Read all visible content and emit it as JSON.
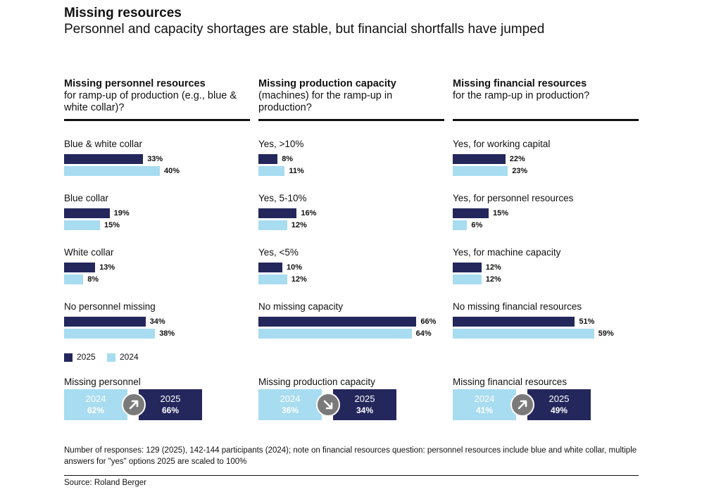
{
  "title": "Missing resources",
  "subtitle": "Personnel and capacity shortages are stable, but financial shortfalls have jumped",
  "colors": {
    "y2025": "#23275c",
    "y2024": "#a8dcf0",
    "arrow": "#7a7a7a"
  },
  "legend": {
    "y2025": "2025",
    "y2024": "2024"
  },
  "chart_data": [
    {
      "type": "bar",
      "title_bold": "Missing personnel resources",
      "title_rest": "for ramp-up of production (e.g., blue & white collar)?",
      "categories": [
        "Blue & white collar",
        "Blue collar",
        "White collar",
        "No personnel missing"
      ],
      "series": [
        {
          "name": "2025",
          "values": [
            33,
            19,
            13,
            34
          ]
        },
        {
          "name": "2024",
          "values": [
            40,
            15,
            8,
            38
          ]
        }
      ],
      "value_labels": {
        "2025": [
          "33%",
          "19%",
          "13%",
          "34%"
        ],
        "2024": [
          "40%",
          "15%",
          "8%",
          "38%"
        ]
      },
      "summary": {
        "label": "Missing personnel",
        "y2024": "2024",
        "v2024": "62%",
        "y2025": "2025",
        "v2025": "66%",
        "trend": "up"
      }
    },
    {
      "type": "bar",
      "title_bold": "Missing production capacity",
      "title_rest": "(machines) for the ramp-up in production?",
      "categories": [
        "Yes, >10%",
        "Yes, 5-10%",
        "Yes, <5%",
        "No missing capacity"
      ],
      "series": [
        {
          "name": "2025",
          "values": [
            8,
            16,
            10,
            66
          ]
        },
        {
          "name": "2024",
          "values": [
            11,
            12,
            12,
            64
          ]
        }
      ],
      "value_labels": {
        "2025": [
          "8%",
          "16%",
          "10%",
          "66%"
        ],
        "2024": [
          "11%",
          "12%",
          "12%",
          "64%"
        ]
      },
      "summary": {
        "label": "Missing production capacity",
        "y2024": "2024",
        "v2024": "36%",
        "y2025": "2025",
        "v2025": "34%",
        "trend": "down"
      }
    },
    {
      "type": "bar",
      "title_bold": "Missing financial resources",
      "title_rest": "for the ramp-up in production?",
      "categories": [
        "Yes, for working capital",
        "Yes, for personnel resources",
        "Yes, for machine capacity",
        "No missing financial resources"
      ],
      "series": [
        {
          "name": "2025",
          "values": [
            22,
            15,
            12,
            51
          ]
        },
        {
          "name": "2024",
          "values": [
            23,
            6,
            12,
            59
          ]
        }
      ],
      "value_labels": {
        "2025": [
          "22%",
          "15%",
          "12%",
          "51%"
        ],
        "2024": [
          "23%",
          "6%",
          "12%",
          "59%"
        ]
      },
      "summary": {
        "label": "Missing financial resources",
        "y2024": "2024",
        "v2024": "41%",
        "y2025": "2025",
        "v2025": "49%",
        "trend": "up"
      }
    }
  ],
  "note": "Number of responses: 129 (2025), 142-144 participants (2024); note on financial resources question: personnel resources include blue and white collar, multiple answers for \"yes\" options 2025 are scaled to 100%",
  "source": "Source: Roland Berger"
}
